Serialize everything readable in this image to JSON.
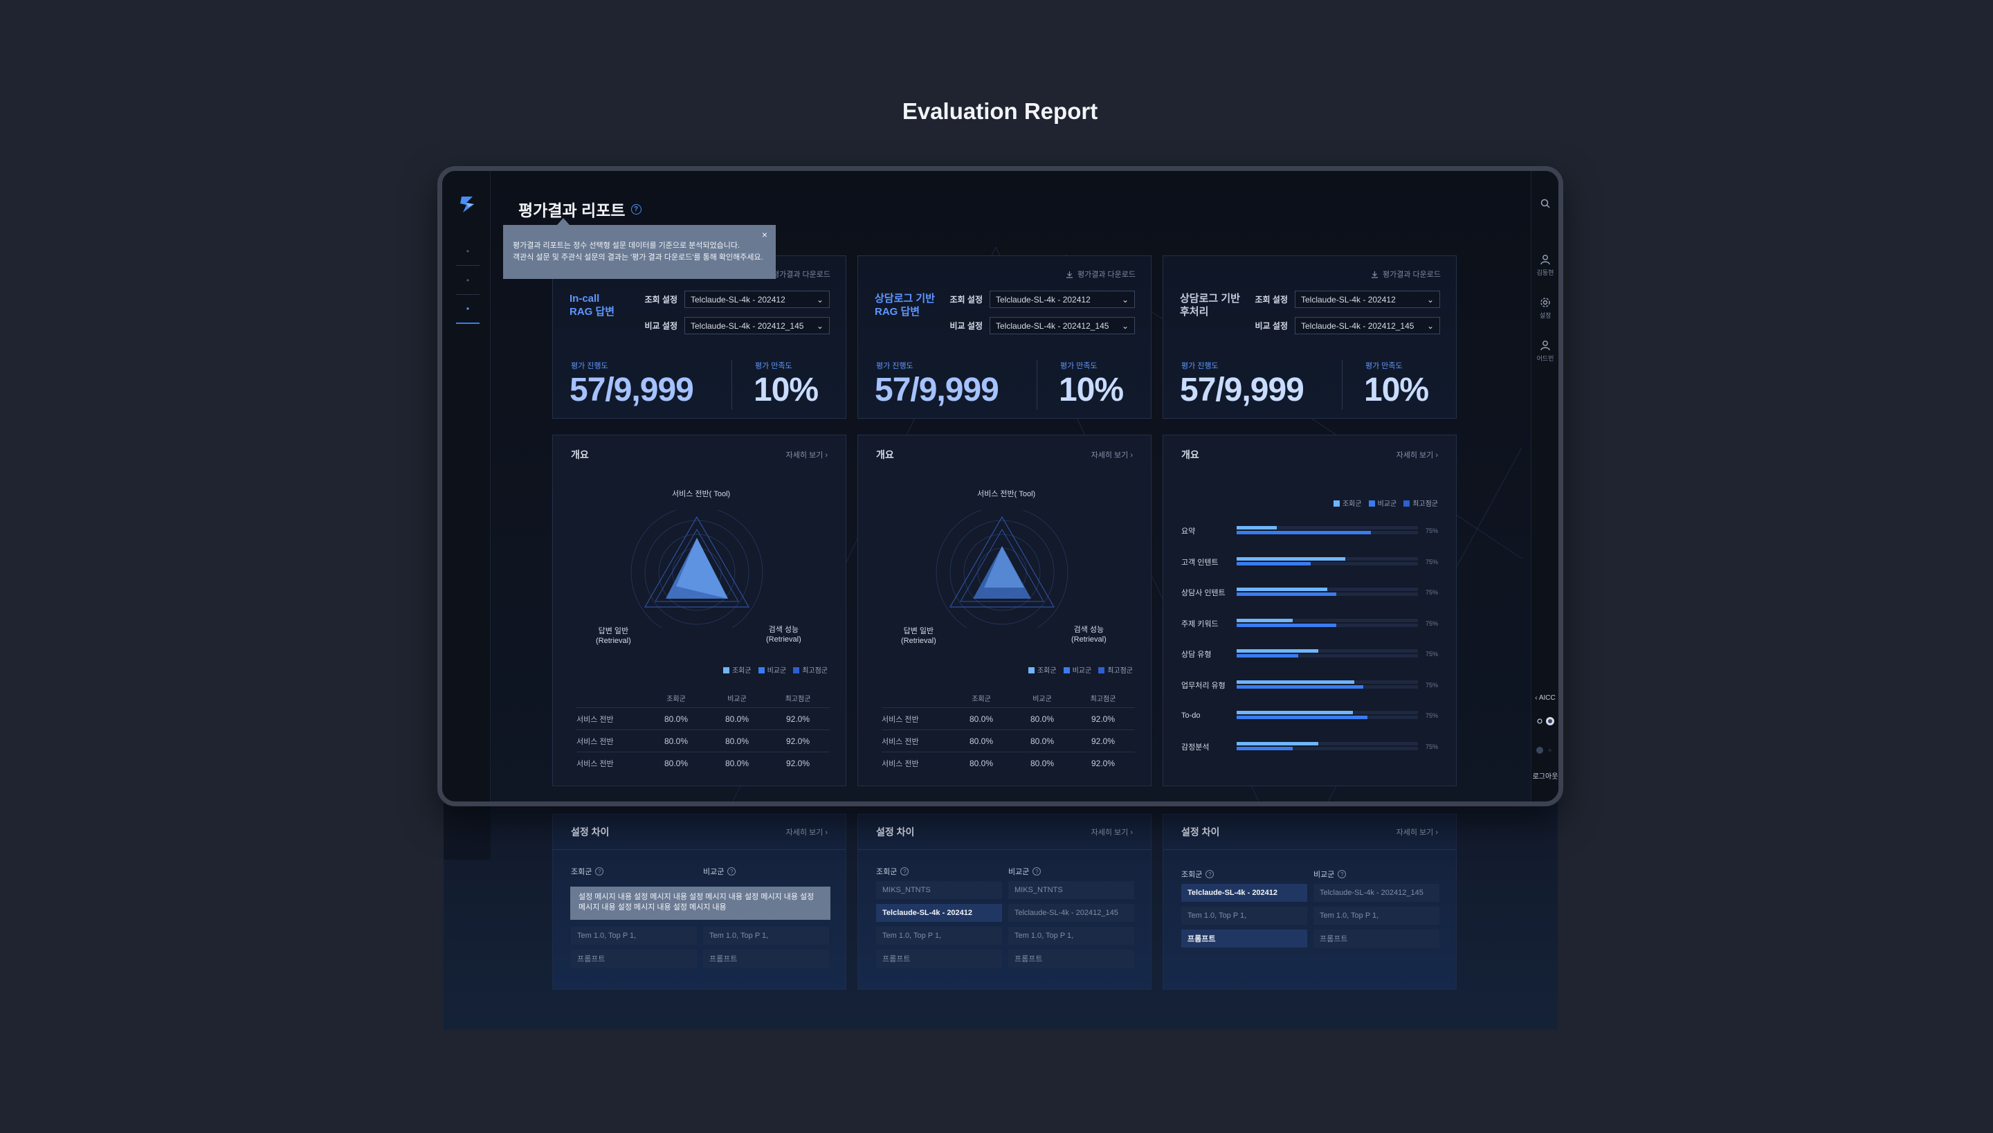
{
  "page_title": "Evaluation Report",
  "app": {
    "title": "평가결과 리포트",
    "tooltip": {
      "line1": "평가결과 리포트는 정수 선택형 설문 데이터를 기준으로 분석되었습니다.",
      "line2": "객관식 설문 및 주관식 설문의 결과는 '평가 결과 다운로드'를 통해 확인해주세요.",
      "close": "×"
    },
    "right_nav": [
      {
        "icon": "user-icon",
        "label": "김동현"
      },
      {
        "icon": "gear-icon",
        "label": "설정"
      },
      {
        "icon": "admin-icon",
        "label": "어드민"
      }
    ],
    "right_bottom": {
      "aicc": "AICC",
      "logout": "로그아웃"
    }
  },
  "cards": [
    {
      "title_line1": "In-call",
      "title_line2": "RAG 답변",
      "download": "평가결과 다운로드",
      "query_label": "조회 설정",
      "query_value": "Telclaude-SL-4k - 202412",
      "compare_label": "비교 설정",
      "compare_value": "Telclaude-SL-4k - 202412_145",
      "progress_label": "평가 진행도",
      "progress_value": "57/9,999",
      "satisfaction_label": "평가 만족도",
      "satisfaction_value": "10%"
    },
    {
      "title_line1": "상담로그 기반",
      "title_line2": "RAG 답변",
      "download": "평가결과 다운로드",
      "query_label": "조회 설정",
      "query_value": "Telclaude-SL-4k - 202412",
      "compare_label": "비교 설정",
      "compare_value": "Telclaude-SL-4k - 202412_145",
      "progress_label": "평가 진행도",
      "progress_value": "57/9,999",
      "satisfaction_label": "평가 만족도",
      "satisfaction_value": "10%"
    },
    {
      "title_line1": "상담로그 기반",
      "title_line2": "후처리",
      "download": "평가결과 다운로드",
      "query_label": "조회 설정",
      "query_value": "Telclaude-SL-4k - 202412",
      "compare_label": "비교 설정",
      "compare_value": "Telclaude-SL-4k - 202412_145",
      "progress_label": "평가 진행도",
      "progress_value": "57/9,999",
      "satisfaction_label": "평가 만족도",
      "satisfaction_value": "10%"
    }
  ],
  "overview": {
    "title": "개요",
    "more": "자세히 보기",
    "radar_labels": {
      "top": "서비스 전반( Tool)",
      "left1": "답변 일반",
      "left2": "(Retrieval)",
      "right1": "검색 성능",
      "right2": "(Retrieval)"
    },
    "legend": [
      "조회군",
      "비교군",
      "최고점군"
    ],
    "table": {
      "headers": [
        "",
        "조회군",
        "비교군",
        "최고점군"
      ],
      "rows": [
        [
          "서비스 전반",
          "80.0%",
          "80.0%",
          "92.0%"
        ],
        [
          "서비스 전반",
          "80.0%",
          "80.0%",
          "92.0%"
        ],
        [
          "서비스 전반",
          "80.0%",
          "80.0%",
          "92.0%"
        ]
      ]
    }
  },
  "bars": {
    "title": "개요",
    "more": "자세히 보기",
    "legend": [
      "조회군",
      "비교군",
      "최고점군"
    ],
    "rows": [
      {
        "label": "요약",
        "a": 0.22,
        "b": 0.74,
        "pct": "75%"
      },
      {
        "label": "고객 인텐트",
        "a": 0.6,
        "b": 0.41,
        "pct": "75%"
      },
      {
        "label": "상담사 인텐트",
        "a": 0.5,
        "b": 0.55,
        "pct": "75%"
      },
      {
        "label": "주제 키워드",
        "a": 0.31,
        "b": 0.55,
        "pct": "75%"
      },
      {
        "label": "상담 유형",
        "a": 0.45,
        "b": 0.34,
        "pct": "75%"
      },
      {
        "label": "업무처리 유형",
        "a": 0.65,
        "b": 0.7,
        "pct": "75%"
      },
      {
        "label": "To-do",
        "a": 0.64,
        "b": 0.72,
        "pct": "75%"
      },
      {
        "label": "감정분석",
        "a": 0.45,
        "b": 0.31,
        "pct": "75%"
      }
    ]
  },
  "settings": [
    {
      "title": "설정 차이",
      "more": "자세히 보기",
      "col1": "조회군",
      "col2": "비교군",
      "tooltip": "설정 메시지 내용 설정 메시지 내용 설정 메시지 내용 설정 메시지 내용 설정 메시지 내용 설정 메시지 내용 설정 메시지 내용",
      "left": [
        "Tem 1.0, Top P 1,",
        "프롬프트"
      ],
      "right": [
        "Tem 1.0, Top P 1,",
        "프롬프트"
      ]
    },
    {
      "title": "설정 차이",
      "more": "자세히 보기",
      "col1": "조회군",
      "col2": "비교군",
      "left": [
        "MIKS_NTNTS",
        "Telclaude-SL-4k - 202412",
        "Tem 1.0, Top P 1,",
        "프롬프트"
      ],
      "right": [
        "MIKS_NTNTS",
        "Telclaude-SL-4k - 202412_145",
        "Tem 1.0, Top P 1,",
        "프롬프트"
      ]
    },
    {
      "title": "설정 차이",
      "more": "자세히 보기",
      "col1": "조회군",
      "col2": "비교군",
      "left": [
        "Telclaude-SL-4k - 202412",
        "Tem 1.0, Top P 1,",
        "프롬프트"
      ],
      "right": [
        "Telclaude-SL-4k - 202412_145",
        "Tem 1.0, Top P 1,",
        "프롬프트"
      ]
    }
  ],
  "colors": {
    "accent": "#3a7cf0",
    "series_a": "#6fb6ff",
    "series_b": "#3a7cf0",
    "series_c": "#2f5fd0",
    "metric": "#a6c2ff"
  }
}
